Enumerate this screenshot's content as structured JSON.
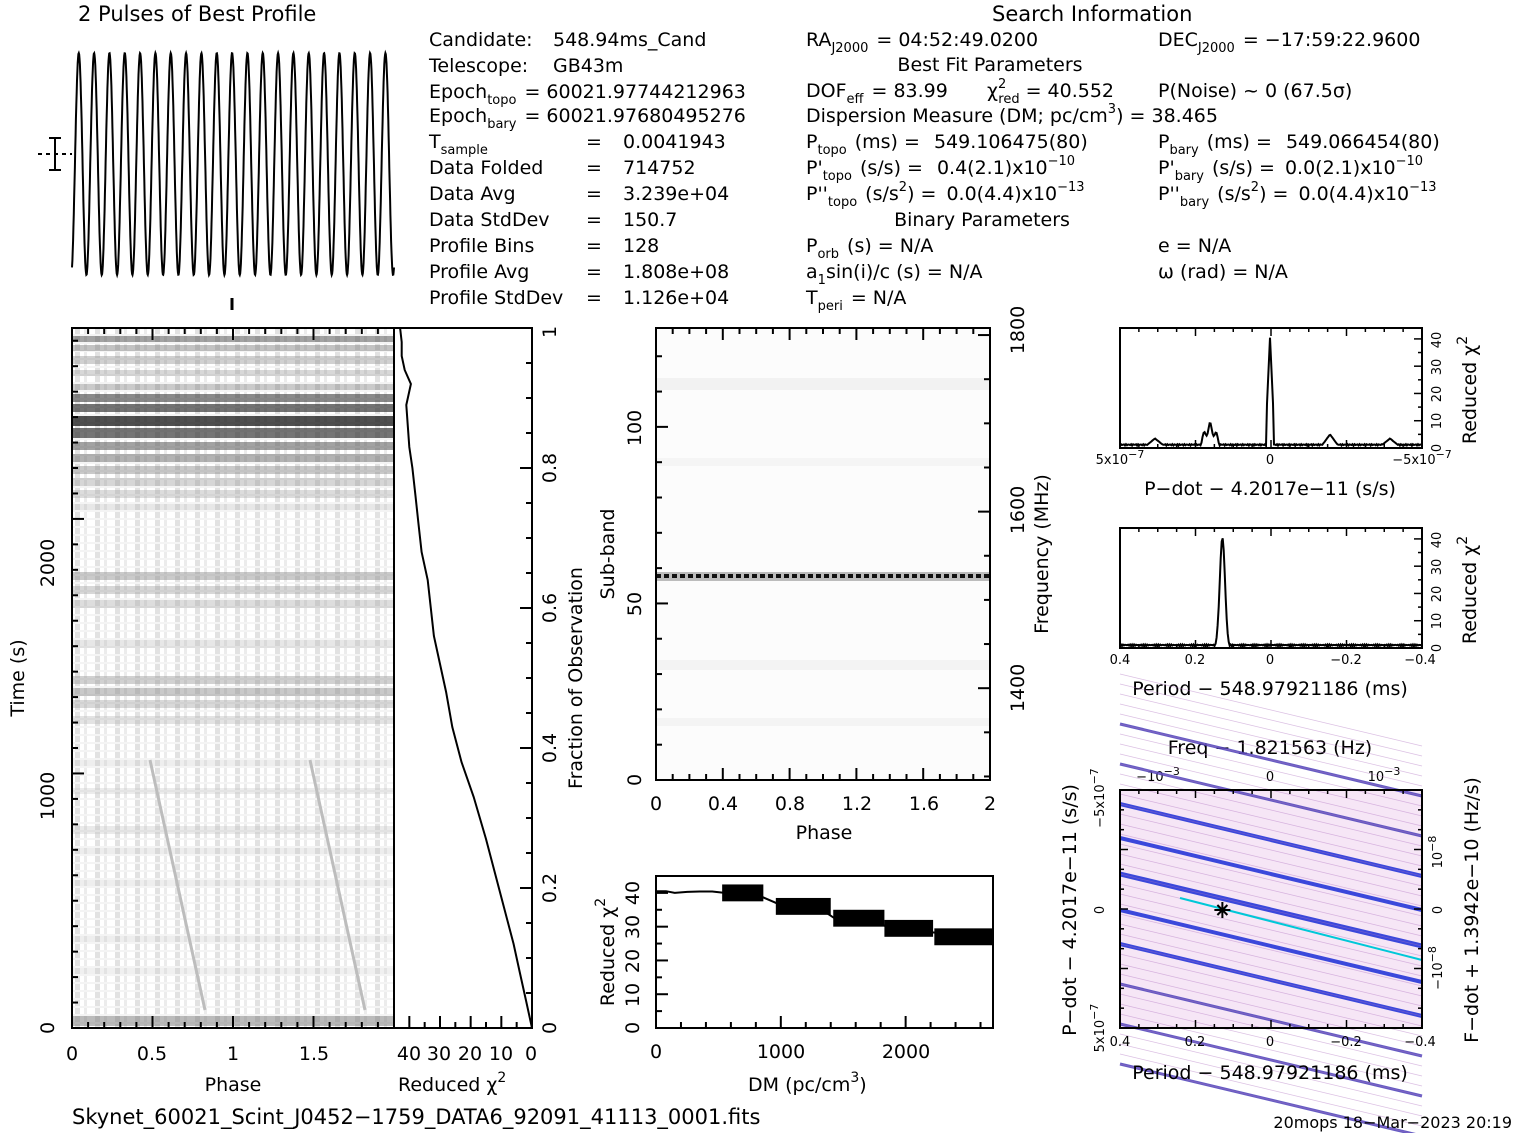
{
  "profile_title": "2 Pulses of Best Profile",
  "search_title": "Search Information",
  "best_fit_title": "Best Fit Parameters",
  "binary_title": "Binary Parameters",
  "candidate": {
    "label": "Candidate:",
    "value": "548.94ms_Cand"
  },
  "telescope": {
    "label": "Telescope:",
    "value": "GB43m"
  },
  "epoch_topo": {
    "label": "Epoch",
    "sub": "topo",
    "value": "= 60021.97744212963"
  },
  "epoch_bary": {
    "label": "Epoch",
    "sub": "bary",
    "value": "= 60021.97680495276"
  },
  "stats": [
    {
      "label": "T",
      "sub": "sample",
      "value": "0.0041943"
    },
    {
      "label": "Data Folded",
      "sub": "",
      "value": "714752"
    },
    {
      "label": "Data Avg",
      "sub": "",
      "value": "3.239e+04"
    },
    {
      "label": "Data StdDev",
      "sub": "",
      "value": "150.7"
    },
    {
      "label": "Profile Bins",
      "sub": "",
      "value": "128"
    },
    {
      "label": "Profile Avg",
      "sub": "",
      "value": "1.808e+08"
    },
    {
      "label": "Profile StdDev",
      "sub": "",
      "value": "1.126e+04"
    }
  ],
  "search": {
    "ra": {
      "label": "RA",
      "sub": "J2000",
      "value": "= 04:52:49.0200"
    },
    "dec": {
      "label": "DEC",
      "sub": "J2000",
      "value": "= −17:59:22.9600"
    },
    "dof": {
      "label": "DOF",
      "sub": "eff",
      "value": "= 83.99"
    },
    "chi2": {
      "label": "χ",
      "sup": "2",
      "sub": "red",
      "value": "= 40.552"
    },
    "pnoise": "P(Noise) ~ 0   (67.5σ)",
    "dm_label": "Dispersion Measure (DM; pc/cm",
    "dm_sup": "3",
    "dm_value": ") = 38.465",
    "p_topo": {
      "label": "P",
      "sub": "topo",
      "unit": "(ms) =",
      "value": "549.106475(80)"
    },
    "p_bary": {
      "label": "P",
      "sub": "bary",
      "unit": "(ms) =",
      "value": "549.066454(80)"
    },
    "pd_topo": {
      "label": "P'",
      "sub": "topo",
      "unit": "(s/s) =",
      "value": "0.4(2.1)x10",
      "exp": "−10"
    },
    "pd_bary": {
      "label": "P'",
      "sub": "bary",
      "unit": "(s/s) =",
      "value": "0.0(2.1)x10",
      "exp": "−10"
    },
    "pdd_topo": {
      "label": "P''",
      "sub": "topo",
      "unit": "(s/s",
      "unit_sup": "2",
      "unit_end": ") =",
      "value": "0.0(4.4)x10",
      "exp": "−13"
    },
    "pdd_bary": {
      "label": "P''",
      "sub": "bary",
      "unit": "(s/s",
      "unit_sup": "2",
      "unit_end": ") =",
      "value": "0.0(4.4)x10",
      "exp": "−13"
    },
    "porb": {
      "label": "P",
      "sub": "orb",
      "value": "(s) = N/A"
    },
    "e": "e = N/A",
    "a1sini": {
      "label": "a",
      "sub": "1",
      "value": "sin(i)/c (s) = N/A"
    },
    "omega": "ω (rad) = N/A",
    "tperi": {
      "label": "T",
      "sub": "peri",
      "value": "= N/A"
    }
  },
  "footer": {
    "filename": "Skynet_60021_Scint_J0452−1759_DATA6_92091_41113_0001.fits",
    "stamp": "20mops 18−Mar−2023 20:19"
  },
  "colors": {
    "line": "#000000",
    "greymap_dark": "#303030",
    "ppdot_blue": "#1a2bd6",
    "ppdot_cyan": "#00c8d8",
    "ppdot_bg": "#f6e6f6"
  },
  "chart_data": [
    {
      "name": "profile",
      "type": "line",
      "title": "2 Pulses of Best Profile",
      "x_range": [
        0,
        2
      ],
      "cycles": 21,
      "value_scale": "normalized",
      "errorbar": true
    },
    {
      "name": "time-phase",
      "type": "heatmap",
      "xlabel": "Phase",
      "ylabel": "Time (s)",
      "x_range": [
        0,
        2
      ],
      "y_range": [
        0,
        2750
      ],
      "xticks": [
        "0",
        "0.5",
        "1",
        "1.5"
      ],
      "yticks": [
        "0",
        "1000",
        "2000"
      ],
      "right_label": "Fraction of Observation",
      "right_ticks": [
        "0",
        "0.2",
        "0.4",
        "0.6",
        "0.8",
        "1"
      ],
      "colormap": "greyscale"
    },
    {
      "name": "reduced-chi2-vs-time",
      "type": "line",
      "xlabel": "Reduced χ",
      "xlabel_sup": "2",
      "xticks": [
        "40",
        "30",
        "20",
        "10",
        "0"
      ],
      "x_range": [
        45,
        0
      ],
      "y_range": [
        0,
        1
      ],
      "x": [
        0,
        2,
        4,
        6,
        9,
        12,
        15,
        19,
        23,
        26,
        28,
        30,
        32,
        33,
        34,
        36,
        37,
        38,
        39,
        40,
        40.5,
        41,
        39.5,
        41.5,
        42.5,
        42.5,
        43
      ],
      "y": [
        0,
        0.04,
        0.08,
        0.12,
        0.17,
        0.22,
        0.27,
        0.33,
        0.38,
        0.43,
        0.48,
        0.52,
        0.56,
        0.6,
        0.64,
        0.68,
        0.72,
        0.76,
        0.8,
        0.83,
        0.86,
        0.89,
        0.92,
        0.94,
        0.96,
        0.98,
        1.0
      ]
    },
    {
      "name": "subband-phase",
      "type": "heatmap",
      "xlabel": "Phase",
      "ylabel": "Sub-band",
      "x_range": [
        0,
        2
      ],
      "y_range": [
        0,
        128
      ],
      "xticks": [
        "0",
        "0.4",
        "0.8",
        "1.2",
        "1.6",
        "2"
      ],
      "yticks": [
        "0",
        "50",
        "100"
      ],
      "right_label": "Frequency (MHz)",
      "right_ticks": [
        "1400",
        "1600",
        "1800"
      ],
      "bright_subband": 58
    },
    {
      "name": "dm-chi2",
      "type": "line",
      "xlabel": "DM (pc/cm",
      "xlabel_sup": "3",
      "xlabel_end": ")",
      "ylabel": "Reduced χ",
      "ylabel_sup": "2",
      "xticks": [
        "0",
        "1000",
        "2000"
      ],
      "yticks": [
        "0",
        "10",
        "20",
        "30",
        "40"
      ],
      "x_range": [
        0,
        2700
      ],
      "y_range": [
        0,
        45
      ],
      "x": [
        0,
        80,
        150,
        250,
        350,
        450,
        550,
        650,
        750,
        850,
        950,
        1050,
        1150,
        1250,
        1350,
        1450,
        1550,
        1650,
        1750,
        1850,
        1950,
        2050,
        2150,
        2250,
        2350,
        2450,
        2550,
        2650,
        2700
      ],
      "y": [
        40.5,
        40.5,
        40.0,
        40.3,
        40.4,
        40.4,
        40.0,
        39.0,
        38.5,
        38.8,
        37.2,
        35.5,
        35.8,
        36.0,
        34.5,
        32.0,
        32.3,
        32.0,
        31.5,
        30.0,
        28.5,
        28.0,
        28.5,
        28.2,
        27.0,
        26.5,
        26.8,
        26.5,
        26.5
      ]
    },
    {
      "name": "pdot-chi2",
      "type": "line",
      "xlabel": "P−dot − 4.2017e−11 (s/s)",
      "ylabel": "Reduced χ",
      "ylabel_sup": "2",
      "xticks": [
        "5x10",
        "0",
        "−5x10"
      ],
      "xtick_exp": "−7",
      "yticks": [
        "0",
        "10",
        "20",
        "30",
        "40"
      ],
      "x_range": [
        5e-07,
        -5e-07
      ],
      "y_range": [
        0,
        44
      ],
      "peak": {
        "x": 0,
        "y": 40.5
      }
    },
    {
      "name": "period-chi2",
      "type": "line",
      "xlabel": "Period − 548.97921186 (ms)",
      "ylabel": "Reduced χ",
      "ylabel_sup": "2",
      "xticks": [
        "0.4",
        "0.2",
        "0",
        "−0.2",
        "−0.4"
      ],
      "yticks": [
        "0",
        "10",
        "20",
        "30",
        "40"
      ],
      "x_range": [
        0.4,
        -0.4
      ],
      "y_range": [
        0,
        44
      ],
      "peak": {
        "x": 0.127,
        "y": 40.5
      }
    },
    {
      "name": "p-pdot",
      "type": "heatmap",
      "title": "Freq − 1.821563 (Hz)",
      "xlabel": "Period − 548.97921186 (ms)",
      "ylabel": "P−dot − 4.2017e−11 (s/s)",
      "right_label": "F−dot + 1.3942e−10 (Hz/s)",
      "xticks": [
        "0.4",
        "0.2",
        "0",
        "−0.2",
        "−0.4"
      ],
      "top_ticks": [
        "−10",
        "0",
        "10"
      ],
      "top_tick_exp": "−3",
      "left_ticks": [
        "5x10",
        "0",
        "−5x10"
      ],
      "left_tick_exp": "−7",
      "right_ticks": [
        "−10",
        "0",
        "10"
      ],
      "right_tick_exp": "−8",
      "best": {
        "period": 0.127,
        "pdot": 0
      }
    }
  ]
}
